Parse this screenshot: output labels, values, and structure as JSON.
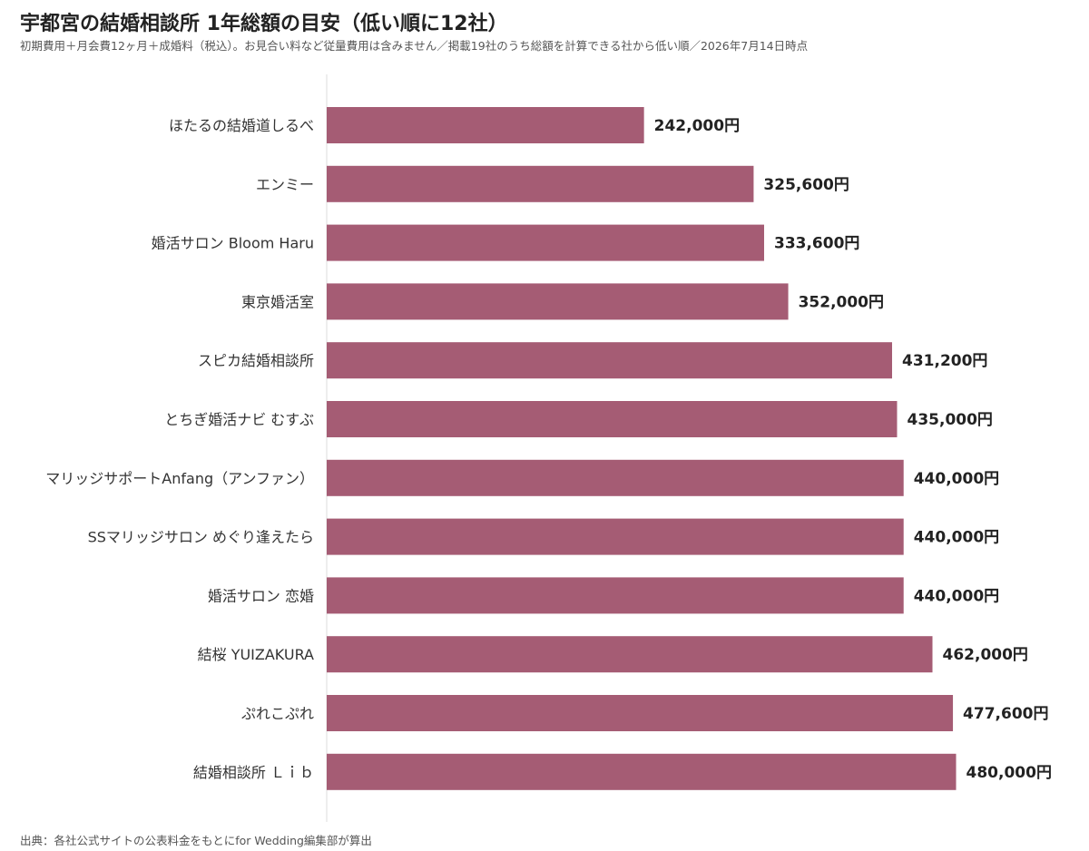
{
  "title": "宇都宮の結婚相談所 1年総額の目安（低い順に12社）",
  "subtitle": "初期費用＋月会費12ヶ月＋成婚料（税込）。お見合い料など従量費用は含みません／掲載19社のうち総額を計算できる社から低い順／2026年7月14日時点",
  "source": "出典：各社公式サイトの公表料金をもとにfor Wedding編集部が算出",
  "colors": {
    "bar": "#a55c74",
    "axis": "#dddddd"
  },
  "chart_data": {
    "type": "bar",
    "orientation": "horizontal",
    "categories": [
      "ほたるの結婚道しるべ",
      "エンミー",
      "婚活サロン Bloom Haru",
      "東京婚活室",
      "スピカ結婚相談所",
      "とちぎ婚活ナビ むすぶ",
      "マリッジサポートAnfang（アンファン）",
      "SSマリッジサロン めぐり逢えたら",
      "婚活サロン 恋婚",
      "結桜 YUIZAKURA",
      "ぷれこぷれ",
      "結婚相談所 Ｌｉｂ"
    ],
    "values": [
      242000,
      325600,
      333600,
      352000,
      431200,
      435000,
      440000,
      440000,
      440000,
      462000,
      477600,
      480000
    ],
    "value_labels": [
      "242,000円",
      "325,600円",
      "333,600円",
      "352,000円",
      "431,200円",
      "435,000円",
      "440,000円",
      "440,000円",
      "440,000円",
      "462,000円",
      "477,600円",
      "480,000円"
    ],
    "xlim": [
      0,
      580000
    ],
    "grid": false,
    "legend": "none"
  }
}
